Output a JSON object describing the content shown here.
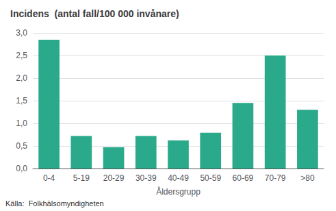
{
  "chart_data": {
    "type": "bar",
    "title": "Incidens  (antal fall/100 000 invånare)",
    "xlabel": "Åldersgrupp",
    "source": "Källa:  Folkhälsomyndigheten",
    "categories": [
      "0-4",
      "5-19",
      "20-29",
      "30-39",
      "40-49",
      "50-59",
      "60-69",
      "70-79",
      ">80"
    ],
    "values": [
      2.85,
      0.72,
      0.47,
      0.72,
      0.62,
      0.79,
      1.45,
      2.5,
      1.3
    ],
    "color": "#2aaa8a",
    "ylim": [
      0,
      3.0
    ],
    "yticks": [
      {
        "value": 0.0,
        "label": "0,0"
      },
      {
        "value": 0.5,
        "label": "0,5"
      },
      {
        "value": 1.0,
        "label": "1,0"
      },
      {
        "value": 1.5,
        "label": "1,5"
      },
      {
        "value": 2.0,
        "label": "2,0"
      },
      {
        "value": 2.5,
        "label": "2,5"
      },
      {
        "value": 3.0,
        "label": "3,0"
      }
    ],
    "grid": true
  }
}
